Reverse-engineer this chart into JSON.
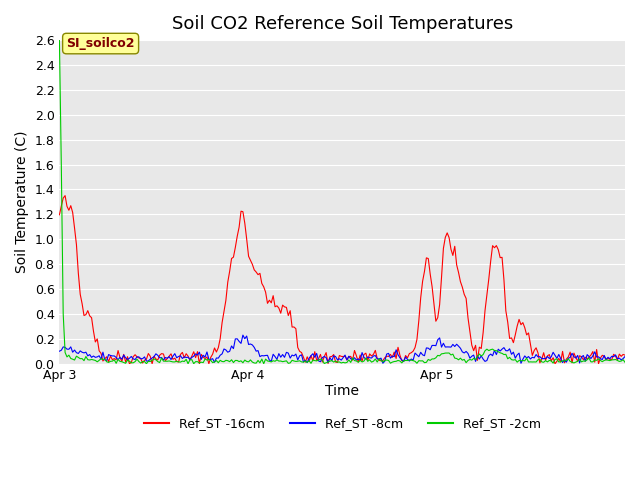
{
  "title": "Soil CO2 Reference Soil Temperatures",
  "ylabel": "Soil Temperature (C)",
  "xlabel": "Time",
  "ylim": [
    0,
    2.6
  ],
  "yticks": [
    0.0,
    0.2,
    0.4,
    0.6,
    0.8,
    1.0,
    1.2,
    1.4,
    1.6,
    1.8,
    2.0,
    2.2,
    2.4,
    2.6
  ],
  "xtick_labels": [
    "Apr 3",
    "Apr 4",
    "Apr 5"
  ],
  "legend_labels": [
    "Ref_ST -16cm",
    "Ref_ST -8cm",
    "Ref_ST -2cm"
  ],
  "legend_colors": [
    "#ff0000",
    "#0000ff",
    "#00cc00"
  ],
  "annotation_text": "SI_soilco2",
  "annotation_bg": "#ffff99",
  "annotation_fg": "#800000",
  "plot_bg": "#e8e8e8",
  "fig_bg": "#ffffff",
  "title_fontsize": 13,
  "label_fontsize": 10,
  "tick_fontsize": 9,
  "n_points": 300
}
